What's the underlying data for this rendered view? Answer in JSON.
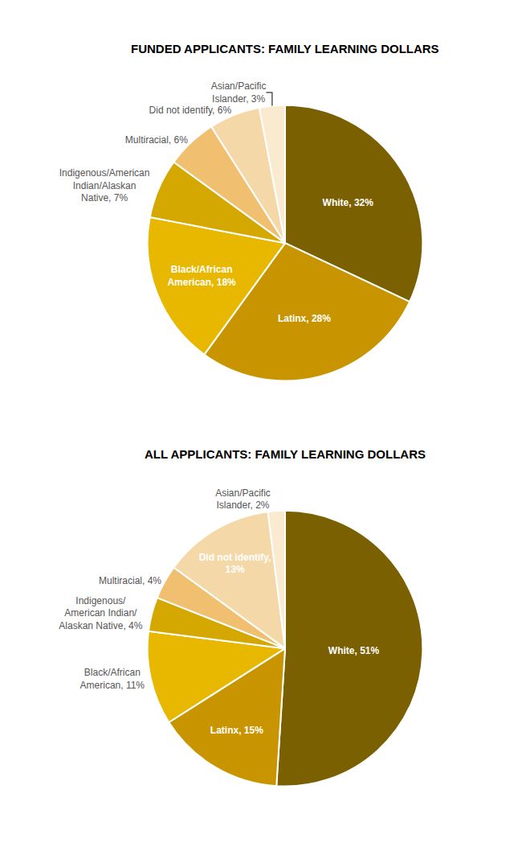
{
  "chart_data": [
    {
      "type": "pie",
      "title": "FUNDED APPLICANTS: FAMILY LEARNING DOLLARS",
      "categories": [
        "White, 32%",
        "Latinx, 28%",
        "Black/African\nAmerican, 18%",
        "Indigenous/American\nIndian/Alaskan\nNative, 7%",
        "Multiracial, 6%",
        "Did not identify, 6%",
        "Asian/Pacific\nIslander, 3%"
      ],
      "values": [
        32,
        28,
        18,
        7,
        6,
        6,
        3
      ],
      "colors": [
        "#7a6000",
        "#c89500",
        "#e8b800",
        "#d4a800",
        "#f0c070",
        "#f5d8a8",
        "#faebd0"
      ]
    },
    {
      "type": "pie",
      "title": "ALL APPLICANTS: FAMILY LEARNING DOLLARS",
      "categories": [
        "White, 51%",
        "Latinx, 15%",
        "Black/African\nAmerican, 11%",
        "Indigenous/\nAmerican Indian/\nAlaskan Native, 4%",
        "Multiracial, 4%",
        "Did not identify,\n13%",
        "Asian/Pacific\nIslander, 2%"
      ],
      "values": [
        51,
        15,
        11,
        4,
        4,
        13,
        2
      ],
      "colors": [
        "#7a6000",
        "#c89500",
        "#e8b800",
        "#d4a800",
        "#f0c070",
        "#f5d8a8",
        "#faebd0"
      ]
    }
  ]
}
